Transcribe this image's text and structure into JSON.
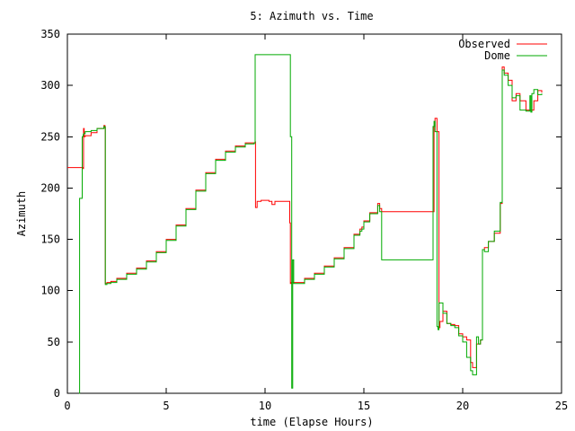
{
  "chart_data": {
    "type": "line",
    "title": "5: Azimuth vs. Time",
    "xlabel": "time (Elapse Hours)",
    "ylabel": "Azimuth",
    "xlim": [
      0,
      25
    ],
    "ylim": [
      0,
      350
    ],
    "xticks": [
      0,
      5,
      10,
      15,
      20,
      25
    ],
    "yticks": [
      0,
      50,
      100,
      150,
      200,
      250,
      300,
      350
    ],
    "grid": false,
    "legend": "top-right",
    "series": [
      {
        "name": "Observed",
        "color": "#ff0000",
        "x": [
          0,
          0.8,
          0.82,
          0.85,
          0.9,
          1.2,
          1.5,
          1.85,
          1.9,
          1.92,
          2.0,
          2.2,
          2.5,
          3.0,
          3.5,
          4.0,
          4.5,
          5.0,
          5.5,
          6.0,
          6.5,
          7.0,
          7.5,
          8.0,
          8.5,
          9.0,
          9.5,
          9.52,
          9.6,
          9.8,
          10.2,
          10.35,
          10.5,
          11.2,
          11.25,
          11.28,
          11.32,
          11.35,
          12.0,
          12.5,
          13.0,
          13.5,
          14.0,
          14.5,
          14.8,
          14.9,
          15.0,
          15.3,
          15.7,
          15.8,
          15.9,
          16.0,
          16.5,
          17.0,
          17.5,
          18.0,
          18.5,
          18.55,
          18.6,
          18.7,
          18.8,
          18.85,
          19.0,
          19.2,
          19.4,
          19.6,
          19.8,
          20.0,
          20.2,
          20.4,
          20.5,
          20.7,
          20.9,
          21.0,
          21.1,
          21.3,
          21.6,
          21.9,
          22.0,
          22.1,
          22.3,
          22.5,
          22.7,
          22.9,
          23.2,
          23.4,
          23.6,
          23.8,
          24.0
        ],
        "y": [
          220,
          219,
          258,
          250,
          251,
          254,
          258,
          261,
          260,
          107,
          108,
          109,
          112,
          117,
          122,
          129,
          138,
          150,
          164,
          180,
          198,
          215,
          228,
          236,
          241,
          244,
          245,
          181,
          187,
          188,
          187,
          184,
          187,
          187,
          166,
          107,
          108,
          108,
          112,
          117,
          124,
          132,
          142,
          155,
          160,
          162,
          168,
          176,
          185,
          180,
          177,
          177,
          177,
          177,
          177,
          177,
          177,
          260,
          268,
          255,
          64,
          70,
          80,
          68,
          67,
          66,
          58,
          55,
          52,
          30,
          25,
          48,
          52,
          140,
          142,
          148,
          156,
          185,
          318,
          312,
          305,
          285,
          292,
          285,
          276,
          276,
          285,
          295,
          293
        ]
      },
      {
        "name": "Dome",
        "color": "#00aa00",
        "x": [
          0.6,
          0.62,
          0.75,
          0.8,
          0.82,
          0.9,
          1.2,
          1.5,
          1.85,
          1.9,
          1.92,
          2.0,
          2.2,
          2.5,
          3.0,
          3.5,
          4.0,
          4.5,
          5.0,
          5.5,
          6.0,
          6.5,
          7.0,
          7.5,
          8.0,
          8.5,
          9.0,
          9.45,
          9.5,
          9.52,
          11.25,
          11.28,
          11.35,
          11.4,
          11.45,
          12.0,
          12.5,
          13.0,
          13.5,
          14.0,
          14.5,
          14.8,
          14.9,
          15.0,
          15.3,
          15.7,
          15.8,
          15.9,
          17.0,
          18.4,
          18.5,
          18.55,
          18.6,
          18.7,
          18.75,
          18.8,
          19.0,
          19.2,
          19.4,
          19.6,
          19.8,
          20.0,
          20.2,
          20.4,
          20.5,
          20.7,
          20.8,
          20.9,
          21.0,
          21.1,
          21.3,
          21.6,
          21.9,
          22.0,
          22.1,
          22.3,
          22.5,
          22.7,
          22.9,
          23.2,
          23.4,
          23.45,
          23.5,
          23.6,
          23.8,
          24.0
        ],
        "y": [
          0,
          190,
          250,
          252,
          253,
          255,
          256,
          258,
          260,
          259,
          106,
          107,
          108,
          111,
          116,
          121,
          128,
          137,
          149,
          163,
          179,
          197,
          214,
          227,
          235,
          240,
          243,
          244,
          330,
          330,
          330,
          250,
          5,
          130,
          107,
          111,
          116,
          123,
          131,
          141,
          154,
          158,
          160,
          167,
          175,
          183,
          177,
          130,
          130,
          130,
          260,
          265,
          255,
          65,
          62,
          88,
          78,
          68,
          66,
          64,
          56,
          50,
          35,
          22,
          18,
          55,
          48,
          52,
          140,
          138,
          148,
          158,
          186,
          315,
          310,
          300,
          288,
          290,
          276,
          275,
          290,
          274,
          292,
          296,
          291,
          292
        ]
      }
    ]
  }
}
